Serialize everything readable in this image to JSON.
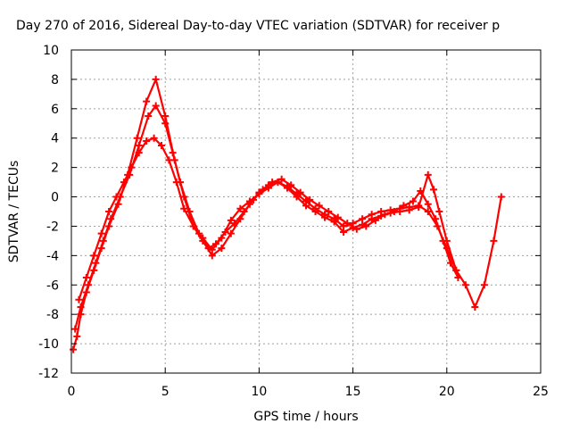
{
  "chart_data": {
    "type": "scatter",
    "title": "Day 270 of 2016, Sidereal Day-to-day VTEC variation (SDTVAR) for receiver p",
    "xlabel": "GPS time / hours",
    "ylabel": "SDTVAR / TECUs",
    "xlim": [
      0,
      25
    ],
    "ylim": [
      -12,
      10
    ],
    "xticks": [
      0,
      5,
      10,
      15,
      20,
      25
    ],
    "yticks": [
      -12,
      -10,
      -8,
      -6,
      -4,
      -2,
      0,
      2,
      4,
      6,
      8,
      10
    ],
    "grid": true,
    "marker": "+",
    "color": "#ff0000",
    "series": [
      {
        "x": [
          0.1,
          0.3,
          0.5,
          0.8,
          1.2,
          1.6,
          2.0,
          2.5,
          3.0,
          3.5,
          4.0,
          4.5,
          5.0,
          5.5,
          6.0,
          6.5,
          7.0,
          7.5,
          8.0,
          8.5,
          9.0,
          9.5,
          10.0,
          10.5,
          11.0,
          11.5,
          12.0,
          12.5,
          13.0,
          13.5,
          14.0,
          14.5,
          15.0,
          15.5,
          16.0,
          16.5,
          17.0,
          17.5,
          18.0,
          18.5,
          19.0,
          19.5,
          20.0,
          20.5,
          21.0,
          21.5,
          22.0,
          22.5,
          22.9
        ],
        "y": [
          -10.4,
          -9.5,
          -8.0,
          -6.5,
          -5.0,
          -3.5,
          -2.0,
          -0.5,
          1.5,
          4.0,
          6.5,
          8.0,
          5.5,
          2.5,
          0.0,
          -2.0,
          -3.0,
          -4.0,
          -3.5,
          -2.5,
          -1.5,
          -0.5,
          0.3,
          0.8,
          1.0,
          0.7,
          0.2,
          -0.3,
          -0.8,
          -1.2,
          -1.5,
          -2.0,
          -1.8,
          -1.5,
          -1.2,
          -1.0,
          -0.9,
          -0.8,
          -0.7,
          -0.6,
          -1.0,
          -2.0,
          -3.5,
          -5.0,
          -6.0,
          -7.5,
          -6.0,
          -3.0,
          0.0
        ]
      },
      {
        "x": [
          0.2,
          0.5,
          0.9,
          1.3,
          1.7,
          2.1,
          2.6,
          3.1,
          3.6,
          4.1,
          4.5,
          5.0,
          5.4,
          5.8,
          6.3,
          6.8,
          7.3,
          7.7,
          8.2,
          8.7,
          9.2,
          9.7,
          10.2,
          10.7,
          11.2,
          11.7,
          12.2,
          12.7,
          13.2,
          13.7,
          14.2,
          14.7,
          15.2,
          15.7,
          16.2,
          16.7,
          17.2,
          17.7,
          18.2,
          18.6,
          19.0,
          19.4,
          19.8,
          20.2,
          20.6
        ],
        "y": [
          -9.0,
          -7.5,
          -6.0,
          -4.5,
          -3.0,
          -1.5,
          0.0,
          1.5,
          3.5,
          5.5,
          6.2,
          5.0,
          3.0,
          1.0,
          -1.0,
          -2.5,
          -3.5,
          -3.2,
          -2.4,
          -1.8,
          -1.0,
          -0.2,
          0.5,
          1.0,
          1.2,
          0.8,
          0.3,
          -0.2,
          -0.6,
          -1.0,
          -1.4,
          -1.8,
          -2.2,
          -2.0,
          -1.6,
          -1.2,
          -1.0,
          -0.6,
          -0.3,
          0.4,
          -0.5,
          -1.5,
          -3.0,
          -4.5,
          -5.5
        ]
      },
      {
        "x": [
          0.4,
          0.8,
          1.2,
          1.6,
          2.0,
          2.4,
          2.8,
          3.2,
          3.6,
          4.0,
          4.4,
          4.8,
          5.2,
          5.6,
          6.0,
          6.5,
          7.0,
          7.5,
          8.0,
          8.5,
          9.0,
          9.5,
          10.0,
          10.5,
          11.0,
          11.5,
          12.0,
          12.5,
          13.0,
          13.5,
          14.0,
          14.5,
          15.0,
          15.5,
          16.0,
          16.5,
          17.0,
          17.5,
          18.0,
          18.5,
          19.0,
          19.3,
          19.6,
          20.0,
          20.5
        ],
        "y": [
          -7.0,
          -5.5,
          -4.0,
          -2.5,
          -1.0,
          0.0,
          1.0,
          2.0,
          3.0,
          3.8,
          4.0,
          3.5,
          2.5,
          1.0,
          -0.8,
          -2.0,
          -2.8,
          -3.6,
          -2.8,
          -1.6,
          -0.8,
          -0.3,
          0.2,
          0.6,
          1.0,
          0.6,
          0.0,
          -0.6,
          -1.0,
          -1.4,
          -1.7,
          -2.4,
          -2.1,
          -1.9,
          -1.5,
          -1.3,
          -1.1,
          -1.0,
          -0.9,
          -0.7,
          1.5,
          0.5,
          -1.0,
          -3.0,
          -5.0
        ]
      }
    ]
  }
}
